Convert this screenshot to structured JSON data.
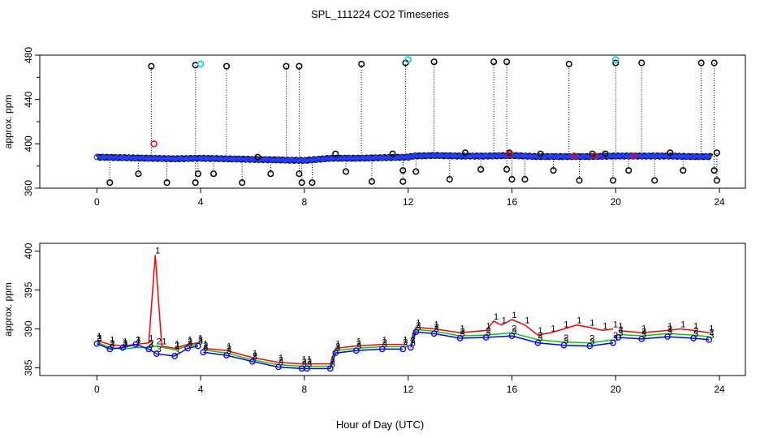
{
  "title": "SPL_111224  CO2 Timeseries",
  "xlabel": "Hour of Day (UTC)",
  "chart_data": [
    {
      "type": "scatter",
      "panel": "top",
      "ylabel": "approx. ppm",
      "xlim": [
        -2.2,
        25.0
      ],
      "ylim": [
        360,
        480
      ],
      "xticks": [
        0,
        4,
        8,
        12,
        16,
        20,
        24
      ],
      "yticks": [
        360,
        400,
        440,
        480
      ],
      "baseline": [
        [
          0,
          388
        ],
        [
          1,
          387.5
        ],
        [
          2,
          387
        ],
        [
          3,
          386.5
        ],
        [
          4,
          387
        ],
        [
          5,
          386.5
        ],
        [
          6,
          386
        ],
        [
          7,
          385.5
        ],
        [
          8,
          385
        ],
        [
          9,
          387
        ],
        [
          10,
          387
        ],
        [
          11,
          387.5
        ],
        [
          12,
          388
        ],
        [
          12.2,
          389
        ],
        [
          13,
          389.5
        ],
        [
          14,
          389
        ],
        [
          15,
          389
        ],
        [
          16,
          389.5
        ],
        [
          17,
          388.5
        ],
        [
          18,
          388.5
        ],
        [
          19,
          388.5
        ],
        [
          20,
          389
        ],
        [
          21,
          389
        ],
        [
          22,
          389
        ],
        [
          23,
          388.5
        ],
        [
          23.7,
          388.5
        ]
      ],
      "red_markers": [
        [
          2.2,
          400
        ],
        [
          15.9,
          391
        ],
        [
          18.4,
          389
        ],
        [
          19.2,
          389
        ],
        [
          20.7,
          389
        ]
      ],
      "cyan_markers": [
        [
          4.0,
          472
        ],
        [
          12.0,
          476
        ],
        [
          20.0,
          476
        ]
      ],
      "outliers": [
        [
          0.5,
          365
        ],
        [
          1.6,
          373
        ],
        [
          2.1,
          470
        ],
        [
          2.7,
          365
        ],
        [
          3.8,
          471
        ],
        [
          3.8,
          365
        ],
        [
          3.9,
          373
        ],
        [
          4.5,
          373
        ],
        [
          5.0,
          470
        ],
        [
          5.6,
          365
        ],
        [
          6.2,
          388
        ],
        [
          6.7,
          373
        ],
        [
          7.3,
          470
        ],
        [
          7.8,
          470
        ],
        [
          7.8,
          373
        ],
        [
          7.9,
          365
        ],
        [
          8.3,
          365
        ],
        [
          9.2,
          391
        ],
        [
          9.6,
          375
        ],
        [
          10.2,
          472
        ],
        [
          10.6,
          366
        ],
        [
          11.4,
          391
        ],
        [
          11.8,
          376
        ],
        [
          11.8,
          366
        ],
        [
          11.9,
          473
        ],
        [
          12.3,
          375
        ],
        [
          13.0,
          474
        ],
        [
          13.6,
          368
        ],
        [
          14.2,
          392
        ],
        [
          14.8,
          377
        ],
        [
          15.3,
          474
        ],
        [
          15.8,
          474
        ],
        [
          15.8,
          377
        ],
        [
          15.9,
          392
        ],
        [
          16.0,
          368
        ],
        [
          16.5,
          368
        ],
        [
          17.1,
          391
        ],
        [
          17.6,
          376
        ],
        [
          18.2,
          472
        ],
        [
          18.6,
          367
        ],
        [
          19.1,
          391
        ],
        [
          19.6,
          391
        ],
        [
          19.9,
          367
        ],
        [
          20.0,
          473
        ],
        [
          20.5,
          376
        ],
        [
          21.0,
          473
        ],
        [
          21.5,
          367
        ],
        [
          22.1,
          392
        ],
        [
          22.6,
          376
        ],
        [
          23.3,
          473
        ],
        [
          23.8,
          473
        ],
        [
          23.8,
          376
        ],
        [
          23.9,
          392
        ],
        [
          23.9,
          367
        ]
      ]
    },
    {
      "type": "line",
      "panel": "bottom",
      "ylabel": "approx. ppm",
      "xlim": [
        -2.2,
        25.0
      ],
      "ylim": [
        384,
        401
      ],
      "xticks": [
        0,
        4,
        8,
        12,
        16,
        20,
        24
      ],
      "yticks": [
        385,
        390,
        395,
        400
      ],
      "series": [
        {
          "name": "1",
          "color": "#ff0000",
          "points": [
            [
              0,
              388.5
            ],
            [
              0.5,
              388
            ],
            [
              1,
              387.8
            ],
            [
              1.5,
              388
            ],
            [
              2,
              388.2
            ],
            [
              2.25,
              399.5
            ],
            [
              2.5,
              387.8
            ],
            [
              3,
              387.5
            ],
            [
              3.5,
              388
            ],
            [
              3.9,
              388.2
            ],
            [
              4.1,
              387.5
            ],
            [
              5,
              387.2
            ],
            [
              6,
              386.3
            ],
            [
              7,
              385.7
            ],
            [
              7.9,
              385.5
            ],
            [
              8.1,
              385.5
            ],
            [
              9,
              385.5
            ],
            [
              9.2,
              387.5
            ],
            [
              10,
              387.8
            ],
            [
              11,
              388
            ],
            [
              11.8,
              388
            ],
            [
              12.1,
              388.5
            ],
            [
              12.3,
              390.2
            ],
            [
              13,
              390
            ],
            [
              14,
              389.5
            ],
            [
              15,
              389.8
            ],
            [
              15.3,
              391
            ],
            [
              15.6,
              390.5
            ],
            [
              16,
              391.2
            ],
            [
              16.5,
              390.5
            ],
            [
              17,
              389.2
            ],
            [
              17.5,
              389.5
            ],
            [
              18,
              390
            ],
            [
              18.5,
              390.5
            ],
            [
              19,
              390.2
            ],
            [
              19.5,
              389.8
            ],
            [
              19.9,
              390
            ],
            [
              20.1,
              389.8
            ],
            [
              21,
              389.5
            ],
            [
              22,
              389.8
            ],
            [
              22.5,
              390
            ],
            [
              23,
              389.8
            ],
            [
              23.6,
              389.5
            ]
          ]
        },
        {
          "name": "2",
          "color": "#00cc00",
          "points": [
            [
              0,
              388.3
            ],
            [
              0.5,
              387.6
            ],
            [
              1,
              387.4
            ],
            [
              1.5,
              387.6
            ],
            [
              2,
              387.6
            ],
            [
              2.3,
              387.8
            ],
            [
              3,
              387.3
            ],
            [
              3.5,
              387.8
            ],
            [
              3.9,
              388
            ],
            [
              4.1,
              387.3
            ],
            [
              5,
              386.9
            ],
            [
              6,
              386
            ],
            [
              7,
              385.4
            ],
            [
              7.9,
              385.2
            ],
            [
              8.1,
              385.2
            ],
            [
              9,
              385.2
            ],
            [
              9.2,
              387.2
            ],
            [
              10,
              387.5
            ],
            [
              11,
              387.7
            ],
            [
              11.8,
              387.7
            ],
            [
              12.1,
              388
            ],
            [
              12.3,
              389.9
            ],
            [
              13,
              389.7
            ],
            [
              14,
              389.1
            ],
            [
              15,
              389.2
            ],
            [
              16,
              389.5
            ],
            [
              17,
              388.6
            ],
            [
              18,
              388.3
            ],
            [
              19,
              388.2
            ],
            [
              19.9,
              388.6
            ],
            [
              20.1,
              389.3
            ],
            [
              21,
              389.1
            ],
            [
              22,
              389.4
            ],
            [
              23,
              389.2
            ],
            [
              23.6,
              389
            ]
          ]
        },
        {
          "name": "3",
          "color": "#0000ff",
          "points": [
            [
              0,
              388.1
            ],
            [
              0.5,
              387.4
            ],
            [
              1,
              387.6
            ],
            [
              1.5,
              388
            ],
            [
              2,
              387.4
            ],
            [
              2.3,
              386.8
            ],
            [
              3,
              386.5
            ],
            [
              3.5,
              387.5
            ],
            [
              3.9,
              387.8
            ],
            [
              4.1,
              387
            ],
            [
              5,
              386.6
            ],
            [
              6,
              385.8
            ],
            [
              7,
              385.1
            ],
            [
              7.9,
              384.9
            ],
            [
              8.1,
              384.9
            ],
            [
              9,
              384.9
            ],
            [
              9.2,
              386.9
            ],
            [
              10,
              387.2
            ],
            [
              11,
              387.4
            ],
            [
              11.8,
              387.4
            ],
            [
              12.1,
              387.6
            ],
            [
              12.3,
              389.6
            ],
            [
              13,
              389.4
            ],
            [
              14,
              388.8
            ],
            [
              15,
              388.9
            ],
            [
              16,
              389.1
            ],
            [
              17,
              388.2
            ],
            [
              18,
              387.9
            ],
            [
              19,
              387.8
            ],
            [
              19.9,
              388.2
            ],
            [
              20.1,
              388.9
            ],
            [
              21,
              388.7
            ],
            [
              22,
              389
            ],
            [
              23,
              388.8
            ],
            [
              23.6,
              388.6
            ]
          ]
        }
      ]
    }
  ]
}
